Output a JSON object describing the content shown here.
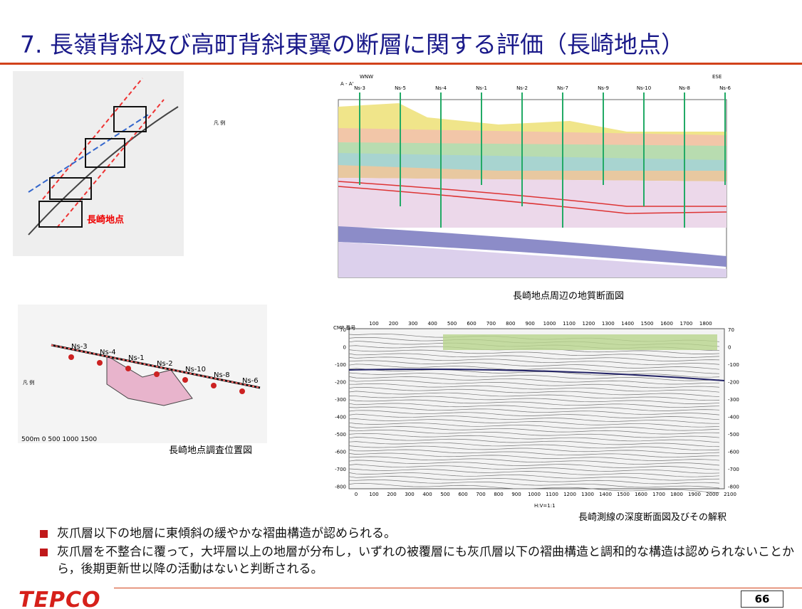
{
  "header": {
    "title": "7. 長嶺背斜及び高町背斜東翼の断層に関する評価（長崎地点）"
  },
  "figures": {
    "location_map": {
      "label": "長崎地点",
      "legend_title": "凡 例"
    },
    "geologic_section": {
      "caption": "長崎地点周辺の地質断面図",
      "section": "A - A'",
      "left_end": "WNW",
      "right_end": "ESE",
      "boreholes": [
        "Ns-3",
        "Ns-5",
        "Ns-4",
        "Ns-1",
        "Ns-2",
        "Ns-7",
        "Ns-9",
        "Ns-10",
        "Ns-8",
        "Ns-6"
      ]
    },
    "survey_map": {
      "caption": "長崎地点調査位置図",
      "legend_title": "凡 例",
      "boreholes": [
        "Ns-3",
        "Ns-4",
        "Ns-1",
        "Ns-2",
        "Ns-10",
        "Ns-8",
        "Ns-6"
      ],
      "scale": "500m  0   500  1000  1500"
    },
    "seismic_section": {
      "caption": "長崎測線の深度断面図及びその解釈",
      "cmp_label": "CMP 番号",
      "ratio": "H:V=1:1",
      "cmp_ticks": [
        "100",
        "200",
        "300",
        "400",
        "500",
        "600",
        "700",
        "800",
        "900",
        "1000",
        "1100",
        "1200",
        "1300",
        "1400",
        "1500",
        "1600",
        "1700",
        "1800"
      ],
      "depth_ticks": [
        "70",
        "0",
        "-100",
        "-200",
        "-300",
        "-400",
        "-500",
        "-600",
        "-700",
        "-800"
      ],
      "distance_ticks": [
        "0",
        "100",
        "200",
        "300",
        "400",
        "500",
        "600",
        "700",
        "800",
        "900",
        "1000",
        "1100",
        "1200",
        "1300",
        "1400",
        "1500",
        "1600",
        "1700",
        "1800",
        "1900",
        "2000",
        "2100"
      ]
    }
  },
  "bullets": [
    "灰爪層以下の地層に東傾斜の緩やかな褶曲構造が認められる。",
    "灰爪層を不整合に覆って，大坪層以上の地層が分布し，いずれの被覆層にも灰爪層以下の褶曲構造と調和的な構造は認められないことから，後期更新世以降の活動はないと判断される。"
  ],
  "footer": {
    "logo": "TEPCO",
    "page": "66"
  }
}
